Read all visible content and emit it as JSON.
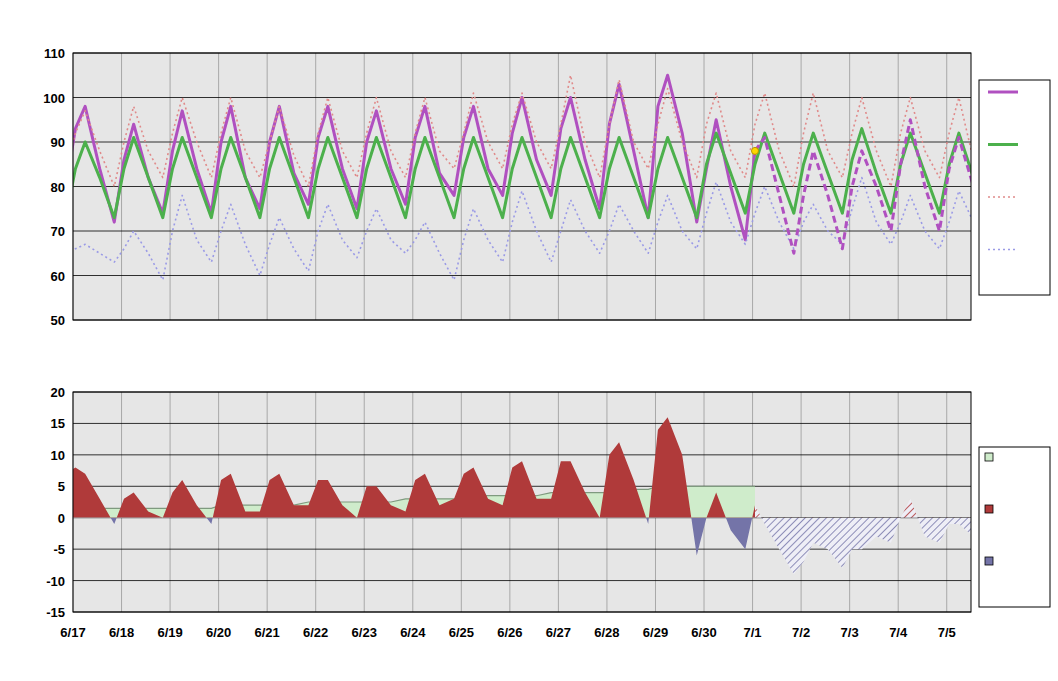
{
  "chart_data": [
    {
      "type": "line",
      "x": [
        -0.15,
        0.05,
        0.25,
        0.55,
        0.85,
        1.05,
        1.25,
        1.55,
        1.85,
        2.05,
        2.25,
        2.55,
        2.85,
        3.05,
        3.25,
        3.55,
        3.85,
        4.05,
        4.25,
        4.55,
        4.85,
        5.05,
        5.25,
        5.55,
        5.85,
        6.05,
        6.25,
        6.55,
        6.85,
        7.05,
        7.25,
        7.55,
        7.85,
        8.05,
        8.25,
        8.55,
        8.85,
        9.05,
        9.25,
        9.55,
        9.85,
        10.05,
        10.25,
        10.55,
        10.85,
        11.05,
        11.25,
        11.55,
        11.85,
        12.05,
        12.25,
        12.55,
        12.85,
        13.05,
        13.25,
        13.55,
        13.85,
        14.05,
        14.25,
        14.55,
        14.85,
        15.05,
        15.25,
        15.55,
        15.85,
        16.05,
        16.25,
        16.55,
        16.85,
        17.05,
        17.25,
        17.55,
        17.85,
        18.05,
        18.25,
        18.55
      ],
      "xlim": [
        0,
        18.5
      ],
      "xticks": [
        {
          "value": 0,
          "label": "6/17"
        },
        {
          "value": 1,
          "label": "6/18"
        },
        {
          "value": 2,
          "label": "6/19"
        },
        {
          "value": 3,
          "label": "6/20"
        },
        {
          "value": 4,
          "label": "6/21"
        },
        {
          "value": 5,
          "label": "6/22"
        },
        {
          "value": 6,
          "label": "6/23"
        },
        {
          "value": 7,
          "label": "6/24"
        },
        {
          "value": 8,
          "label": "6/25"
        },
        {
          "value": 9,
          "label": "6/26"
        },
        {
          "value": 10,
          "label": "6/27"
        },
        {
          "value": 11,
          "label": "6/28"
        },
        {
          "value": 12,
          "label": "6/29"
        },
        {
          "value": 13,
          "label": "6/30"
        },
        {
          "value": 14,
          "label": "7/1"
        },
        {
          "value": 15,
          "label": "7/2"
        },
        {
          "value": 16,
          "label": "7/3"
        },
        {
          "value": 17,
          "label": "7/4"
        },
        {
          "value": 18,
          "label": "7/5"
        }
      ],
      "ylim": [
        50,
        110
      ],
      "yticks": [
        50,
        60,
        70,
        80,
        90,
        100,
        110
      ],
      "grid": true,
      "legend": "right",
      "tick_labels": "y",
      "series": [
        {
          "color": "#b050c0",
          "line_style": "solid",
          "values": [
            80,
            93,
            98,
            84,
            72,
            86,
            94,
            82,
            74,
            88,
            97,
            84,
            74,
            90,
            98,
            82,
            75,
            90,
            98,
            83,
            76,
            91,
            98,
            84,
            75,
            90,
            97,
            84,
            76,
            91,
            98,
            83,
            78,
            91,
            98,
            84,
            78,
            92,
            100,
            86,
            78,
            93,
            100,
            86,
            75,
            94,
            103,
            88,
            73,
            98,
            105,
            92,
            72,
            84,
            95,
            80,
            68,
            88,
            null,
            null,
            null,
            null,
            null,
            null,
            null,
            null,
            null,
            null,
            null,
            null,
            null,
            null,
            null,
            null,
            null,
            null
          ]
        },
        {
          "color": "#4cb04c",
          "line_style": "solid",
          "values": [
            73,
            84,
            90,
            82,
            73,
            84,
            91,
            82,
            73,
            84,
            91,
            82,
            73,
            84,
            91,
            82,
            73,
            84,
            91,
            82,
            73,
            84,
            91,
            82,
            73,
            84,
            91,
            82,
            73,
            84,
            91,
            82,
            73,
            84,
            91,
            82,
            73,
            84,
            91,
            82,
            73,
            84,
            91,
            82,
            73,
            84,
            91,
            82,
            73,
            84,
            91,
            82,
            73,
            85,
            92,
            83,
            74,
            85,
            92,
            83,
            74,
            85,
            92,
            83,
            74,
            86,
            93,
            83,
            74,
            85,
            92,
            83,
            74,
            85,
            92,
            82
          ]
        },
        {
          "color": "#e08a8a",
          "line_style": "dotted",
          "values": [
            84,
            92,
            97,
            88,
            80,
            90,
            98,
            88,
            82,
            92,
            100,
            90,
            82,
            92,
            100,
            88,
            82,
            90,
            98,
            87,
            80,
            92,
            100,
            88,
            82,
            92,
            100,
            88,
            82,
            92,
            100,
            88,
            84,
            92,
            101,
            90,
            84,
            94,
            101,
            90,
            84,
            94,
            105,
            90,
            82,
            94,
            104,
            90,
            84,
            94,
            102,
            90,
            82,
            94,
            101,
            88,
            82,
            94,
            101,
            88,
            80,
            92,
            101,
            88,
            82,
            92,
            100,
            88,
            80,
            92,
            100,
            88,
            82,
            92,
            100,
            86
          ]
        },
        {
          "color": "#9a9ae6",
          "line_style": "dotted",
          "values": [
            65,
            66,
            67,
            65,
            63,
            66,
            70,
            65,
            59,
            70,
            78,
            68,
            63,
            70,
            76,
            67,
            60,
            67,
            73,
            66,
            61,
            70,
            76,
            68,
            64,
            70,
            75,
            68,
            65,
            68,
            72,
            65,
            59,
            68,
            75,
            68,
            63,
            72,
            79,
            70,
            63,
            70,
            77,
            70,
            65,
            70,
            76,
            70,
            65,
            72,
            78,
            70,
            66,
            74,
            81,
            72,
            67,
            74,
            80,
            72,
            66,
            72,
            76,
            70,
            67,
            75,
            82,
            72,
            67,
            72,
            78,
            70,
            66,
            72,
            79,
            72
          ]
        },
        {
          "color": "#b050c0",
          "line_style": "dashed",
          "values": [
            null,
            null,
            null,
            null,
            null,
            null,
            null,
            null,
            null,
            null,
            null,
            null,
            null,
            null,
            null,
            null,
            null,
            null,
            null,
            null,
            null,
            null,
            null,
            null,
            null,
            null,
            null,
            null,
            null,
            null,
            null,
            null,
            null,
            null,
            null,
            null,
            null,
            null,
            null,
            null,
            null,
            null,
            null,
            null,
            null,
            null,
            null,
            null,
            null,
            null,
            null,
            null,
            null,
            null,
            null,
            null,
            null,
            88,
            91,
            78,
            65,
            78,
            88,
            78,
            66,
            80,
            88,
            80,
            70,
            85,
            95,
            80,
            70,
            84,
            91,
            80
          ]
        },
        {
          "type": "scatter",
          "color": "#ffd700",
          "marker": "circle",
          "values": [
            null,
            null,
            null,
            null,
            null,
            null,
            null,
            null,
            null,
            null,
            null,
            null,
            null,
            null,
            null,
            null,
            null,
            null,
            null,
            null,
            null,
            null,
            null,
            null,
            null,
            null,
            null,
            null,
            null,
            null,
            null,
            null,
            null,
            null,
            null,
            null,
            null,
            null,
            null,
            null,
            null,
            null,
            null,
            null,
            null,
            null,
            null,
            null,
            null,
            null,
            null,
            null,
            null,
            null,
            null,
            null,
            null,
            88,
            null,
            null,
            null,
            null,
            null,
            null,
            null,
            null,
            null,
            null,
            null,
            null,
            null,
            null,
            null,
            null,
            null,
            null
          ]
        }
      ]
    },
    {
      "type": "area",
      "x": [
        -0.15,
        0.05,
        0.25,
        0.55,
        0.85,
        1.05,
        1.25,
        1.55,
        1.85,
        2.05,
        2.25,
        2.55,
        2.85,
        3.05,
        3.25,
        3.55,
        3.85,
        4.05,
        4.25,
        4.55,
        4.85,
        5.05,
        5.25,
        5.55,
        5.85,
        6.05,
        6.25,
        6.55,
        6.85,
        7.05,
        7.25,
        7.55,
        7.85,
        8.05,
        8.25,
        8.55,
        8.85,
        9.05,
        9.25,
        9.55,
        9.85,
        10.05,
        10.25,
        10.55,
        10.85,
        11.05,
        11.25,
        11.55,
        11.85,
        12.05,
        12.25,
        12.55,
        12.85,
        13.05,
        13.25,
        13.55,
        13.85,
        14.05,
        14.25,
        14.55,
        14.85,
        15.05,
        15.25,
        15.55,
        15.85,
        16.05,
        16.25,
        16.55,
        16.85,
        17.05,
        17.25,
        17.55,
        17.85,
        18.05,
        18.25,
        18.55
      ],
      "xlim": [
        0,
        18.5
      ],
      "xticks": [
        {
          "value": 0,
          "label": "6/17"
        },
        {
          "value": 1,
          "label": "6/18"
        },
        {
          "value": 2,
          "label": "6/19"
        },
        {
          "value": 3,
          "label": "6/20"
        },
        {
          "value": 4,
          "label": "6/21"
        },
        {
          "value": 5,
          "label": "6/22"
        },
        {
          "value": 6,
          "label": "6/23"
        },
        {
          "value": 7,
          "label": "6/24"
        },
        {
          "value": 8,
          "label": "6/25"
        },
        {
          "value": 9,
          "label": "6/26"
        },
        {
          "value": 10,
          "label": "6/27"
        },
        {
          "value": 11,
          "label": "6/28"
        },
        {
          "value": 12,
          "label": "6/29"
        },
        {
          "value": 13,
          "label": "6/30"
        },
        {
          "value": 14,
          "label": "7/1"
        },
        {
          "value": 15,
          "label": "7/2"
        },
        {
          "value": 16,
          "label": "7/3"
        },
        {
          "value": 17,
          "label": "7/4"
        },
        {
          "value": 18,
          "label": "7/5"
        }
      ],
      "ylim": [
        -15,
        20
      ],
      "yticks": [
        -15,
        -10,
        -5,
        0,
        5,
        10,
        15,
        20
      ],
      "grid": true,
      "legend": "right",
      "colors": [
        "#cfeccb",
        "#b03a3a",
        "#7474a8"
      ],
      "series": [
        {
          "type": "area",
          "values": [
            1.5,
            1.5,
            1.5,
            1.5,
            1.5,
            1.5,
            1.5,
            1.5,
            1.5,
            1.5,
            1.5,
            1.5,
            1.5,
            2,
            2,
            2,
            2,
            2,
            2,
            2,
            2.5,
            2.5,
            2.5,
            2.5,
            2.5,
            2.5,
            2.5,
            2.5,
            3,
            3,
            3,
            3,
            3,
            3,
            3.5,
            3.5,
            3.5,
            3.5,
            3.5,
            3.5,
            4,
            4,
            4,
            4,
            4,
            4,
            4.5,
            4.5,
            4.5,
            5,
            5,
            5,
            5,
            5,
            5,
            5,
            5,
            5,
            null,
            null,
            null,
            null,
            null,
            null,
            null,
            null,
            null,
            null,
            null,
            null,
            null,
            null,
            null,
            null,
            null,
            null
          ]
        },
        {
          "type": "area",
          "values": [
            7,
            8,
            7,
            3,
            -1,
            3,
            4,
            1,
            0,
            4,
            6,
            2,
            -1,
            6,
            7,
            1,
            1,
            6,
            7,
            2,
            2,
            6,
            6,
            2,
            0,
            5,
            5,
            2,
            1,
            6,
            7,
            2,
            3,
            7,
            8,
            3,
            2,
            8,
            9,
            3,
            3,
            9,
            9,
            4,
            0,
            10,
            12,
            6,
            -1,
            14,
            16,
            10,
            -6,
            0,
            4,
            -2,
            -5,
            2,
            null,
            null,
            null,
            null,
            null,
            null,
            null,
            null,
            null,
            null,
            null,
            null,
            null,
            null,
            null,
            null,
            null,
            null
          ]
        },
        {
          "type": "area",
          "line_style": "hatched",
          "values": [
            null,
            null,
            null,
            null,
            null,
            null,
            null,
            null,
            null,
            null,
            null,
            null,
            null,
            null,
            null,
            null,
            null,
            null,
            null,
            null,
            null,
            null,
            null,
            null,
            null,
            null,
            null,
            null,
            null,
            null,
            null,
            null,
            null,
            null,
            null,
            null,
            null,
            null,
            null,
            null,
            null,
            null,
            null,
            null,
            null,
            null,
            null,
            null,
            null,
            null,
            null,
            null,
            null,
            null,
            null,
            null,
            null,
            2,
            -1,
            -5,
            -9,
            -7,
            -4,
            -5,
            -8,
            -5,
            -5,
            -3,
            -4,
            0,
            3,
            -3,
            -4,
            -1,
            -1,
            -3
          ]
        }
      ]
    }
  ]
}
